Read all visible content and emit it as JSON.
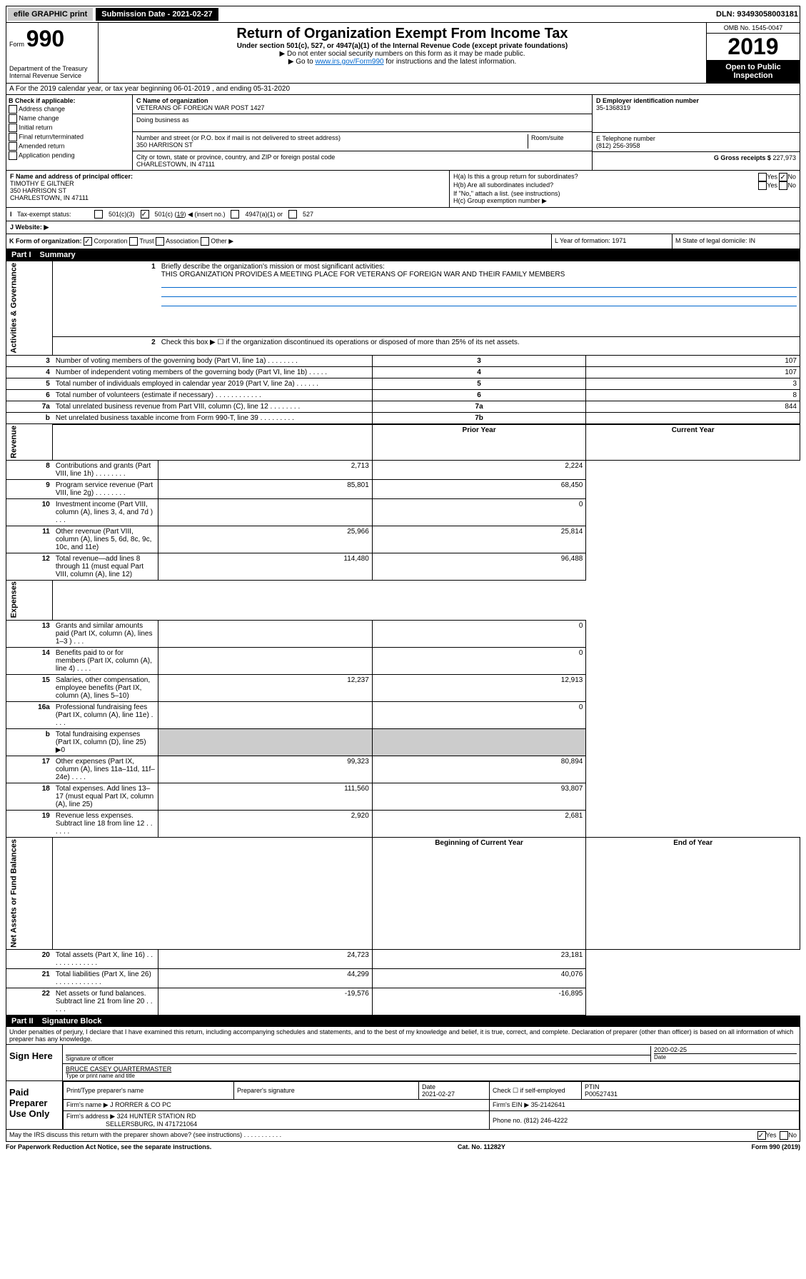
{
  "topbar": {
    "efile": "efile GRAPHIC print",
    "submission": "Submission Date - 2021-02-27",
    "dln": "DLN: 93493058003181"
  },
  "header": {
    "form_label": "Form",
    "form_number": "990",
    "dept": "Department of the Treasury",
    "irs": "Internal Revenue Service",
    "title": "Return of Organization Exempt From Income Tax",
    "subtitle": "Under section 501(c), 527, or 4947(a)(1) of the Internal Revenue Code (except private foundations)",
    "note1": "▶ Do not enter social security numbers on this form as it may be made public.",
    "note2_pre": "▶ Go to ",
    "note2_link": "www.irs.gov/Form990",
    "note2_post": " for instructions and the latest information.",
    "omb": "OMB No. 1545-0047",
    "year": "2019",
    "open": "Open to Public Inspection"
  },
  "row_a": "A For the 2019 calendar year, or tax year beginning 06-01-2019    , and ending 05-31-2020",
  "section_b": {
    "label": "B Check if applicable:",
    "items": [
      "Address change",
      "Name change",
      "Initial return",
      "Final return/terminated",
      "Amended return",
      "Application pending"
    ]
  },
  "section_c": {
    "name_label": "C Name of organization",
    "name": "VETERANS OF FOREIGN WAR POST 1427",
    "dba_label": "Doing business as",
    "street_label": "Number and street (or P.O. box if mail is not delivered to street address)",
    "room_label": "Room/suite",
    "street": "350 HARRISON ST",
    "city_label": "City or town, state or province, country, and ZIP or foreign postal code",
    "city": "CHARLESTOWN, IN  47111"
  },
  "section_d": {
    "label": "D Employer identification number",
    "value": "35-1368319"
  },
  "section_e": {
    "label": "E Telephone number",
    "value": "(812) 256-3958"
  },
  "section_g": {
    "label": "G Gross receipts $",
    "value": "227,973"
  },
  "section_f": {
    "label": "F  Name and address of principal officer:",
    "name": "TIMOTHY E GILTNER",
    "street": "350 HARRISON ST",
    "city": "CHARLESTOWN, IN  47111"
  },
  "section_h": {
    "ha": "H(a)  Is this a group return for subordinates?",
    "hb": "H(b)  Are all subordinates included?",
    "hb_note": "If \"No,\" attach a list. (see instructions)",
    "hc": "H(c)  Group exemption number ▶"
  },
  "tax_status": {
    "label": "Tax-exempt status:",
    "opt1": "501(c)(3)",
    "opt2_pre": "501(c) (",
    "opt2_val": "19",
    "opt2_post": ") ◀ (insert no.)",
    "opt3": "4947(a)(1) or",
    "opt4": "527"
  },
  "website": {
    "label": "J   Website: ▶"
  },
  "klm": {
    "k": "K Form of organization:",
    "k_opts": [
      "Corporation",
      "Trust",
      "Association",
      "Other ▶"
    ],
    "l": "L Year of formation: 1971",
    "m": "M State of legal domicile: IN"
  },
  "part1": {
    "label": "Part I",
    "title": "Summary"
  },
  "summary": {
    "line1_label": "Briefly describe the organization's mission or most significant activities:",
    "line1_text": "THIS ORGANIZATION PROVIDES A MEETING PLACE FOR VETERANS OF FOREIGN WAR AND THEIR FAMILY MEMBERS",
    "line2": "Check this box ▶ ☐  if the organization discontinued its operations or disposed of more than 25% of its net assets.",
    "rows_simple": [
      {
        "n": "3",
        "desc": "Number of voting members of the governing body (Part VI, line 1a)  .   .   .   .   .   .   .   .",
        "col": "3",
        "val": "107"
      },
      {
        "n": "4",
        "desc": "Number of independent voting members of the governing body (Part VI, line 1b)  .   .   .   .   .",
        "col": "4",
        "val": "107"
      },
      {
        "n": "5",
        "desc": "Total number of individuals employed in calendar year 2019 (Part V, line 2a)  .   .   .   .   .   .",
        "col": "5",
        "val": "3"
      },
      {
        "n": "6",
        "desc": "Total number of volunteers (estimate if necessary)  .   .   .   .   .   .   .   .   .   .   .   .",
        "col": "6",
        "val": "8"
      },
      {
        "n": "7a",
        "desc": "Total unrelated business revenue from Part VIII, column (C), line 12  .   .   .   .   .   .   .   .",
        "col": "7a",
        "val": "844"
      },
      {
        "n": "b",
        "desc": "Net unrelated business taxable income from Form 990-T, line 39  .   .   .   .   .   .   .   .   .",
        "col": "7b",
        "val": ""
      }
    ],
    "prior_hdr": "Prior Year",
    "curr_hdr": "Current Year",
    "rows_rev": [
      {
        "n": "8",
        "desc": "Contributions and grants (Part VIII, line 1h)  .   .   .   .   .   .   .   .",
        "py": "2,713",
        "cy": "2,224"
      },
      {
        "n": "9",
        "desc": "Program service revenue (Part VIII, line 2g)  .   .   .   .   .   .   .   .",
        "py": "85,801",
        "cy": "68,450"
      },
      {
        "n": "10",
        "desc": "Investment income (Part VIII, column (A), lines 3, 4, and 7d )  .   .   .",
        "py": "",
        "cy": "0"
      },
      {
        "n": "11",
        "desc": "Other revenue (Part VIII, column (A), lines 5, 6d, 8c, 9c, 10c, and 11e)",
        "py": "25,966",
        "cy": "25,814"
      },
      {
        "n": "12",
        "desc": "Total revenue—add lines 8 through 11 (must equal Part VIII, column (A), line 12)",
        "py": "114,480",
        "cy": "96,488"
      }
    ],
    "rows_exp": [
      {
        "n": "13",
        "desc": "Grants and similar amounts paid (Part IX, column (A), lines 1–3 )  .   .   .",
        "py": "",
        "cy": "0"
      },
      {
        "n": "14",
        "desc": "Benefits paid to or for members (Part IX, column (A), line 4)  .   .   .   .",
        "py": "",
        "cy": "0"
      },
      {
        "n": "15",
        "desc": "Salaries, other compensation, employee benefits (Part IX, column (A), lines 5–10)",
        "py": "12,237",
        "cy": "12,913"
      },
      {
        "n": "16a",
        "desc": "Professional fundraising fees (Part IX, column (A), line 11e)  .   .   .   .",
        "py": "",
        "cy": "0"
      },
      {
        "n": "b",
        "desc": "Total fundraising expenses (Part IX, column (D), line 25) ▶0",
        "py": "",
        "cy": ""
      },
      {
        "n": "17",
        "desc": "Other expenses (Part IX, column (A), lines 11a–11d, 11f–24e)  .   .   .   .",
        "py": "99,323",
        "cy": "80,894"
      },
      {
        "n": "18",
        "desc": "Total expenses. Add lines 13–17 (must equal Part IX, column (A), line 25)",
        "py": "111,560",
        "cy": "93,807"
      },
      {
        "n": "19",
        "desc": "Revenue less expenses. Subtract line 18 from line 12  .   .   .   .   .   .",
        "py": "2,920",
        "cy": "2,681"
      }
    ],
    "net_hdr_py": "Beginning of Current Year",
    "net_hdr_cy": "End of Year",
    "rows_net": [
      {
        "n": "20",
        "desc": "Total assets (Part X, line 16)  .   .   .   .   .   .   .   .   .   .   .   .   .",
        "py": "24,723",
        "cy": "23,181"
      },
      {
        "n": "21",
        "desc": "Total liabilities (Part X, line 26)  .   .   .   .   .   .   .   .   .   .   .   .",
        "py": "44,299",
        "cy": "40,076"
      },
      {
        "n": "22",
        "desc": "Net assets or fund balances. Subtract line 21 from line 20  .   .   .   .   .",
        "py": "-19,576",
        "cy": "-16,895"
      }
    ],
    "side_labels": {
      "gov": "Activities & Governance",
      "rev": "Revenue",
      "exp": "Expenses",
      "net": "Net Assets or Fund Balances"
    }
  },
  "part2": {
    "label": "Part II",
    "title": "Signature Block"
  },
  "perjury": "Under penalties of perjury, I declare that I have examined this return, including accompanying schedules and statements, and to the best of my knowledge and belief, it is true, correct, and complete. Declaration of preparer (other than officer) is based on all information of which preparer has any knowledge.",
  "sign": {
    "here": "Sign Here",
    "sig_officer": "Signature of officer",
    "date": "2020-02-25",
    "date_label": "Date",
    "name": "BRUCE CASEY QUARTERMASTER",
    "name_label": "Type or print name and title"
  },
  "prep": {
    "label": "Paid Preparer Use Only",
    "cols": [
      "Print/Type preparer's name",
      "Preparer's signature",
      "Date",
      "",
      "PTIN"
    ],
    "date": "2021-02-27",
    "check": "Check ☐ if self-employed",
    "ptin": "P00527431",
    "firm_name_label": "Firm's name     ▶",
    "firm_name": "J RORRER & CO PC",
    "firm_ein_label": "Firm's EIN ▶",
    "firm_ein": "35-2142641",
    "firm_addr_label": "Firm's address ▶",
    "firm_addr1": "324 HUNTER STATION RD",
    "firm_addr2": "SELLERSBURG, IN  471721064",
    "phone_label": "Phone no.",
    "phone": "(812) 246-4222"
  },
  "discuss": "May the IRS discuss this return with the preparer shown above? (see instructions)    .   .   .   .   .   .   .   .   .   .   .",
  "footer": {
    "left": "For Paperwork Reduction Act Notice, see the separate instructions.",
    "mid": "Cat. No. 11282Y",
    "right": "Form 990 (2019)"
  },
  "yes": "Yes",
  "no": "No"
}
